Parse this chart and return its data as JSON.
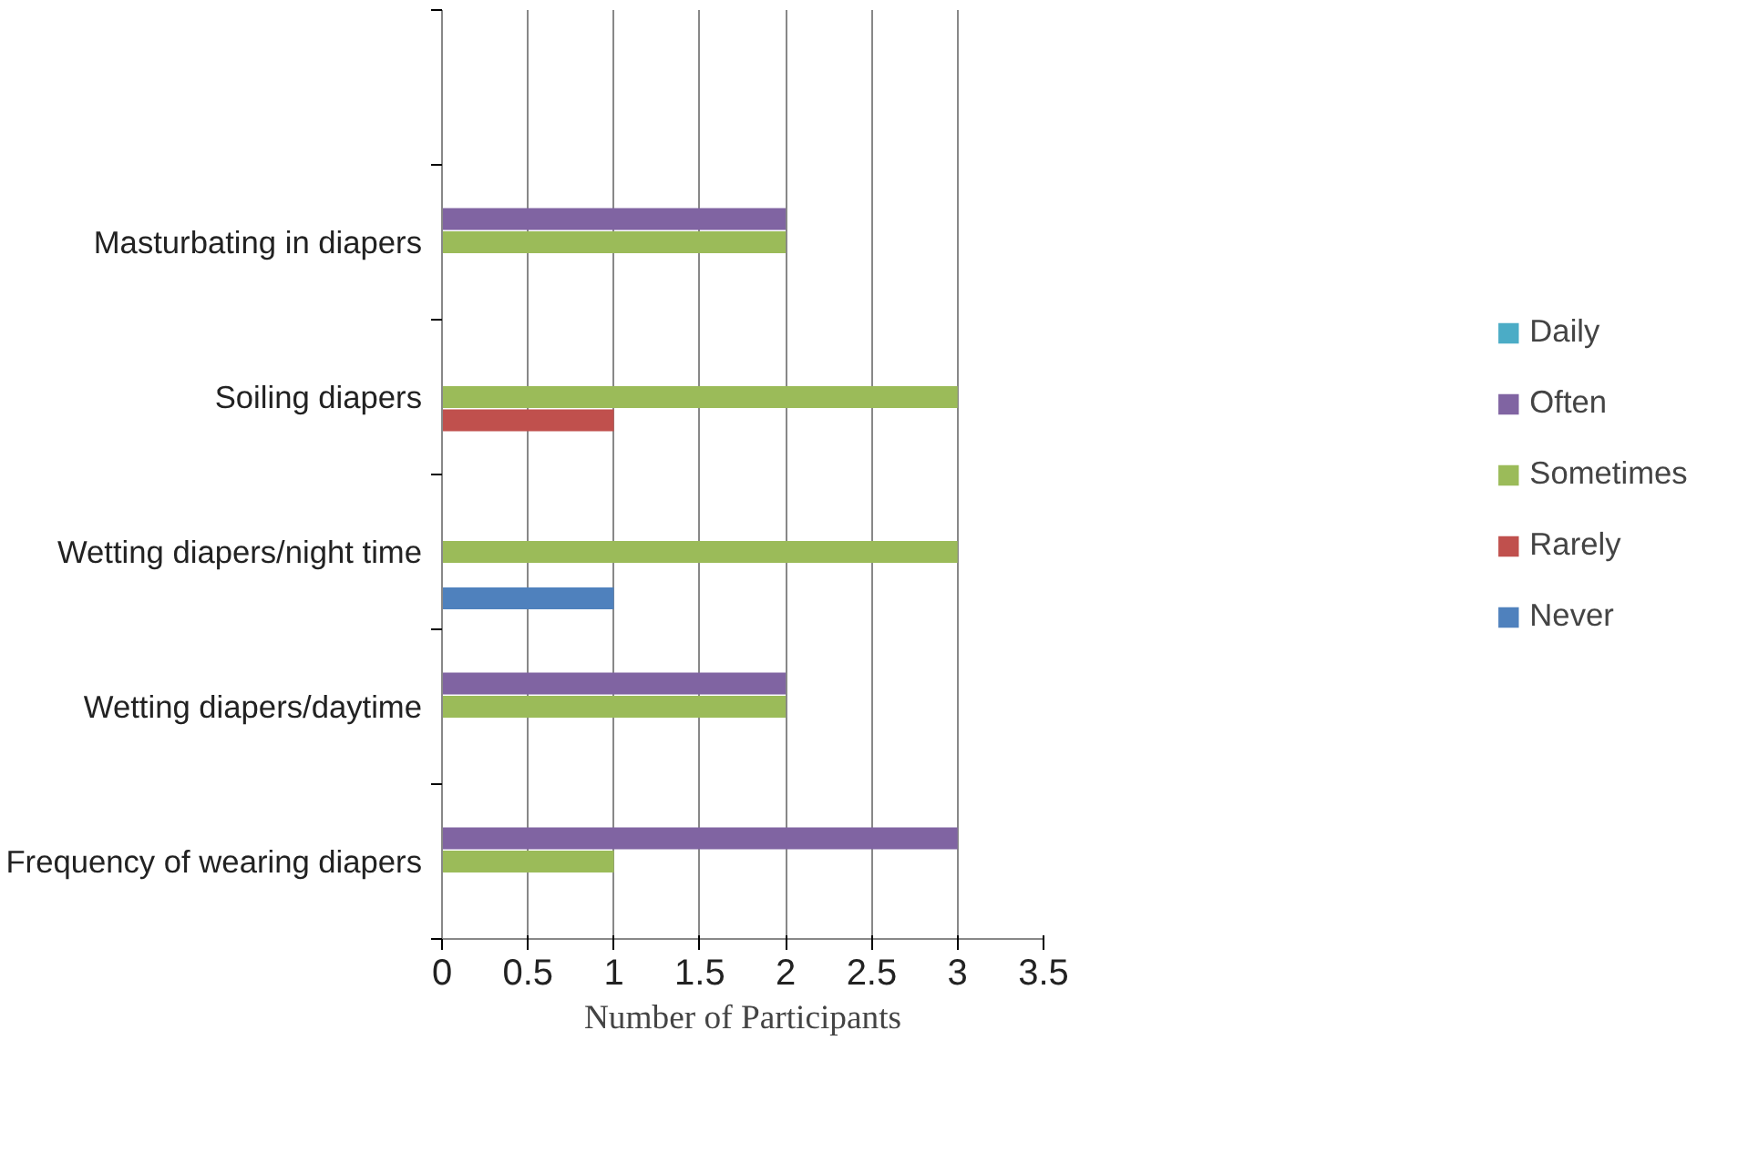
{
  "chart_data": {
    "type": "bar",
    "orientation": "horizontal",
    "xlabel": "Number of Participants",
    "categories": [
      null,
      "Masturbating in diapers",
      "Soiling diapers",
      "Wetting diapers/night time",
      "Wetting diapers/daytime",
      "Frequency of wearing diapers"
    ],
    "series": [
      {
        "name": "Daily",
        "color": "#4bacc6",
        "values": [
          null,
          null,
          null,
          null,
          null,
          null
        ]
      },
      {
        "name": "Often",
        "color": "#8064a2",
        "values": [
          null,
          2,
          null,
          null,
          2,
          3
        ]
      },
      {
        "name": "Sometimes",
        "color": "#9bbb59",
        "values": [
          null,
          2,
          3,
          3,
          2,
          1
        ]
      },
      {
        "name": "Rarely",
        "color": "#c0504d",
        "values": [
          null,
          null,
          1,
          null,
          null,
          null
        ]
      },
      {
        "name": "Never",
        "color": "#4f81bd",
        "values": [
          null,
          null,
          null,
          1,
          null,
          null
        ]
      }
    ],
    "xlim": [
      0,
      3.5
    ],
    "xticks": [
      0,
      0.5,
      1,
      1.5,
      2,
      2.5,
      3,
      3.5
    ],
    "grid": "x",
    "legend": "right"
  }
}
